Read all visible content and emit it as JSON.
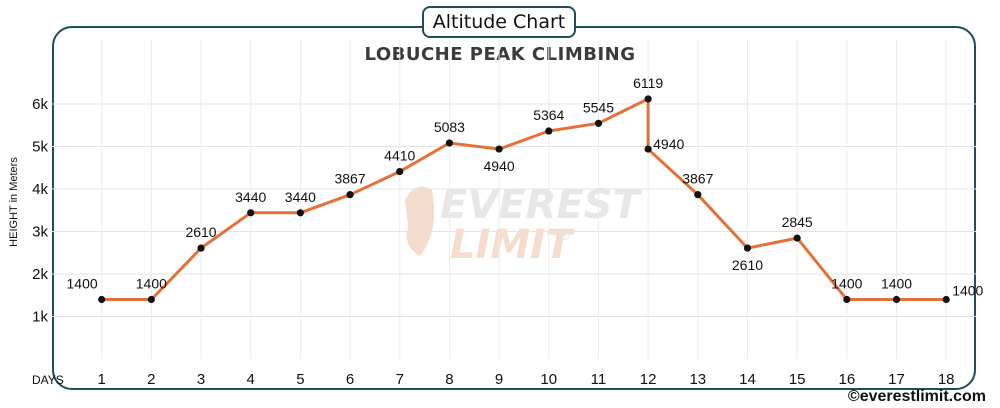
{
  "header": {
    "badge": "Altitude Chart"
  },
  "footer": {
    "credit": "©everestlimit.com"
  },
  "watermark": {
    "line1": "EVEREST",
    "line2": "LIMIT",
    "mark": "®"
  },
  "chart_data": {
    "type": "line",
    "title": "LOBUCHE PEAK CLIMBING",
    "xlabel": "DAYS",
    "ylabel": "HEIGHT in Meters",
    "x": [
      1,
      2,
      3,
      4,
      5,
      6,
      7,
      8,
      9,
      10,
      11,
      12,
      12,
      13,
      14,
      15,
      16,
      17,
      18
    ],
    "values": [
      1400,
      1400,
      2610,
      3440,
      3440,
      3867,
      4410,
      5083,
      4940,
      5364,
      5545,
      6119,
      4940,
      3867,
      2610,
      2845,
      1400,
      1400,
      1400
    ],
    "xticks": [
      "1",
      "2",
      "3",
      "4",
      "5",
      "6",
      "7",
      "8",
      "9",
      "10",
      "11",
      "12",
      "13",
      "14",
      "15",
      "16",
      "17",
      "18"
    ],
    "yticks": [
      1000,
      2000,
      3000,
      4000,
      5000,
      6000
    ],
    "ytick_labels": [
      "1k",
      "2k",
      "3k",
      "4k",
      "5k",
      "6k"
    ],
    "ylim": [
      0,
      6800
    ],
    "xlim": [
      0,
      18.6
    ],
    "grid": true,
    "line_color": "#e5713a",
    "marker_color": "#111111"
  }
}
